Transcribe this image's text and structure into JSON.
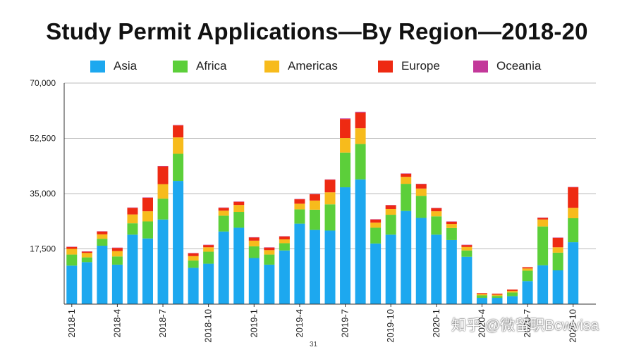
{
  "page_number": "31",
  "watermark": "知乎 @微留职Bcwvisa",
  "colors": {
    "Asia": "#1da8ef",
    "Africa": "#5ccf3a",
    "Americas": "#f7bb1c",
    "Europe": "#ee2a12",
    "Oceania": "#c3389a",
    "grid": "#bbbbbb",
    "axis": "#333333"
  },
  "chart_data": {
    "type": "bar",
    "stacked": true,
    "title": "Study Permit Applications—By Region—2018-20",
    "xlabel": "",
    "ylabel": "",
    "ylim": [
      0,
      70000
    ],
    "yticks": [
      17500,
      35000,
      52500,
      70000
    ],
    "ytick_labels": [
      "17,500",
      "35,000",
      "52,500",
      "70,000"
    ],
    "legend_position": "top",
    "grid": true,
    "categories": [
      "2018-1",
      "2018-2",
      "2018-3",
      "2018-4",
      "2018-5",
      "2018-6",
      "2018-7",
      "2018-8",
      "2018-9",
      "2018-10",
      "2018-11",
      "2018-12",
      "2019-1",
      "2019-2",
      "2019-3",
      "2019-4",
      "2019-5",
      "2019-6",
      "2019-7",
      "2019-8",
      "2019-9",
      "2019-10",
      "2019-11",
      "2019-12",
      "2020-1",
      "2020-2",
      "2020-3",
      "2020-4",
      "2020-5",
      "2020-6",
      "2020-7",
      "2020-8",
      "2020-9",
      "2020-10",
      "2020-11"
    ],
    "xtick_labels": [
      {
        "index": 0,
        "label": "2018-1"
      },
      {
        "index": 3,
        "label": "2018-4"
      },
      {
        "index": 6,
        "label": "2018-7"
      },
      {
        "index": 9,
        "label": "2018-10"
      },
      {
        "index": 12,
        "label": "2019-1"
      },
      {
        "index": 15,
        "label": "2019-4"
      },
      {
        "index": 18,
        "label": "2019-7"
      },
      {
        "index": 21,
        "label": "2019-10"
      },
      {
        "index": 24,
        "label": "2020-1"
      },
      {
        "index": 27,
        "label": "2020-4"
      },
      {
        "index": 30,
        "label": "2020-7"
      },
      {
        "index": 33,
        "label": "2020-10"
      }
    ],
    "series": [
      {
        "name": "Asia",
        "values": [
          12200,
          13300,
          18500,
          12500,
          22000,
          20800,
          26800,
          39000,
          11500,
          12800,
          23000,
          24200,
          14600,
          12500,
          17000,
          25500,
          23500,
          23300,
          37000,
          39500,
          19200,
          22000,
          29500,
          27300,
          22000,
          20300,
          15000,
          2000,
          2000,
          2500,
          7300,
          12300,
          10700,
          19600,
          0
        ]
      },
      {
        "name": "Africa",
        "values": [
          3500,
          1500,
          2200,
          2600,
          3600,
          5400,
          6600,
          8600,
          2300,
          3800,
          5000,
          5000,
          3700,
          3200,
          2300,
          4500,
          6400,
          8300,
          11000,
          11200,
          5000,
          6300,
          8600,
          7000,
          5800,
          3800,
          2000,
          800,
          600,
          1200,
          3300,
          12300,
          5600,
          7600,
          0
        ]
      },
      {
        "name": "Americas",
        "values": [
          1800,
          1400,
          1400,
          1700,
          2800,
          3200,
          4600,
          5200,
          1400,
          1400,
          1600,
          2200,
          1800,
          1400,
          1200,
          1800,
          2900,
          3800,
          4600,
          5000,
          1600,
          1800,
          2200,
          2300,
          1600,
          1300,
          1100,
          400,
          400,
          500,
          700,
          2200,
          1700,
          3300,
          0
        ]
      },
      {
        "name": "Europe",
        "values": [
          600,
          400,
          900,
          1000,
          2100,
          4300,
          5600,
          3800,
          900,
          700,
          900,
          1000,
          1000,
          800,
          900,
          1400,
          2000,
          4000,
          6000,
          5000,
          1000,
          1200,
          1000,
          1400,
          1000,
          700,
          600,
          300,
          300,
          400,
          400,
          500,
          3000,
          6500,
          0
        ]
      },
      {
        "name": "Oceania",
        "values": [
          100,
          100,
          100,
          100,
          100,
          100,
          100,
          100,
          100,
          100,
          100,
          100,
          100,
          100,
          100,
          100,
          100,
          100,
          200,
          200,
          100,
          100,
          100,
          100,
          100,
          100,
          100,
          0,
          0,
          0,
          0,
          100,
          100,
          100,
          0
        ]
      }
    ]
  }
}
